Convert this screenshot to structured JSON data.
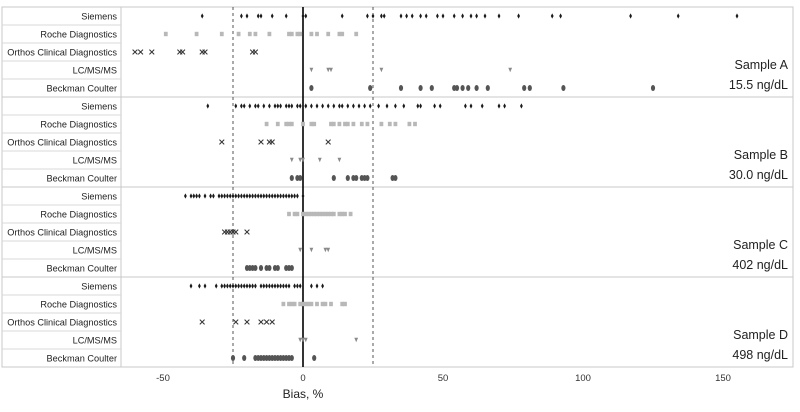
{
  "chart_data": {
    "type": "scatter",
    "xlabel": "Bias, %",
    "xlim": [
      -65,
      175
    ],
    "xticks": [
      -50,
      0,
      50,
      100,
      150
    ],
    "reference_lines": [
      -25,
      0,
      25
    ],
    "method_style": {
      "Siemens": {
        "marker": "diamond-small",
        "color": "#1a1a1a"
      },
      "Roche Diagnostics": {
        "marker": "square",
        "color": "#b8b8b8"
      },
      "Orthos Clinical Diagnostics": {
        "marker": "x",
        "color": "#333333"
      },
      "LC/MS/MS": {
        "marker": "triangle-down",
        "color": "#8a8a8a"
      },
      "Beckman Coulter": {
        "marker": "ellipse",
        "color": "#555555"
      }
    },
    "panels": [
      {
        "sample": "Sample A",
        "concentration": "15.5 ng/dL",
        "methods": [
          {
            "name": "Siemens",
            "values": [
              -36,
              -22,
              -20,
              -16,
              -15,
              -11,
              -6,
              0,
              1,
              14,
              23,
              25,
              28,
              29,
              35,
              37,
              39,
              42,
              44,
              48,
              50,
              54,
              57,
              60,
              62,
              65,
              70,
              77,
              89,
              92,
              117,
              134,
              155
            ]
          },
          {
            "name": "Roche Diagnostics",
            "values": [
              -49,
              -38,
              -29,
              -23,
              -19,
              -17,
              -12,
              -5,
              -4,
              -2,
              -1,
              3,
              5,
              9,
              13,
              14,
              19
            ]
          },
          {
            "name": "Orthos Clinical Diagnostics",
            "values": [
              -60,
              -58,
              -54,
              -44,
              -43,
              -36,
              -35,
              -18,
              -17
            ]
          },
          {
            "name": "LC/MS/MS",
            "values": [
              3,
              9,
              10,
              28,
              74
            ]
          },
          {
            "name": "Beckman Coulter",
            "values": [
              3,
              24,
              35,
              42,
              46,
              54,
              55,
              57,
              59,
              62,
              66,
              79,
              81,
              93,
              125
            ]
          }
        ]
      },
      {
        "sample": "Sample B",
        "concentration": "30.0 ng/dL",
        "methods": [
          {
            "name": "Siemens",
            "values": [
              -34,
              -24,
              -22,
              -21,
              -19,
              -17,
              -16,
              -14,
              -12,
              -10,
              -9,
              -8,
              -6,
              -5,
              -4,
              -2,
              -1,
              1,
              3,
              5,
              7,
              9,
              11,
              13,
              14,
              16,
              18,
              20,
              22,
              24,
              27,
              30,
              33,
              36,
              41,
              42,
              47,
              49,
              58,
              60,
              64,
              70,
              72,
              78
            ]
          },
          {
            "name": "Roche Diagnostics",
            "values": [
              -13,
              -9,
              -6,
              -5,
              -4,
              0,
              3,
              4,
              10,
              11,
              13,
              15,
              16,
              18,
              21,
              23,
              28,
              31,
              33,
              38,
              40
            ]
          },
          {
            "name": "Orthos Clinical Diagnostics",
            "values": [
              -29,
              -15,
              -12,
              -11,
              9
            ]
          },
          {
            "name": "LC/MS/MS",
            "values": [
              -4,
              -1,
              0,
              6,
              13
            ]
          },
          {
            "name": "Beckman Coulter",
            "values": [
              -4,
              -2,
              -1,
              11,
              16,
              18,
              19,
              21,
              22,
              23,
              32,
              33
            ]
          }
        ]
      },
      {
        "sample": "Sample C",
        "concentration": "402 ng/dL",
        "methods": [
          {
            "name": "Siemens",
            "values": [
              -42,
              -40,
              -39,
              -38,
              -37,
              -35,
              -33,
              -32,
              -30,
              -29,
              -28,
              -27,
              -26,
              -25,
              -24,
              -23,
              -22,
              -21,
              -20,
              -19,
              -18,
              -17,
              -16,
              -15,
              -14,
              -13,
              -12,
              -11,
              -10,
              -9,
              -8,
              -7,
              -6,
              -5,
              -4,
              -3,
              -2,
              0
            ]
          },
          {
            "name": "Roche Diagnostics",
            "values": [
              -5,
              -3,
              -2,
              0,
              1,
              2,
              3,
              4,
              5,
              6,
              7,
              8,
              9,
              10,
              11,
              13,
              14,
              15,
              17
            ]
          },
          {
            "name": "Orthos Clinical Diagnostics",
            "values": [
              -28,
              -27,
              -26,
              -25,
              -24,
              -20
            ]
          },
          {
            "name": "LC/MS/MS",
            "values": [
              -1,
              3,
              8,
              9
            ]
          },
          {
            "name": "Beckman Coulter",
            "values": [
              -20,
              -19,
              -18,
              -17,
              -15,
              -13,
              -12,
              -10,
              -9,
              -6,
              -5,
              -4
            ]
          }
        ]
      },
      {
        "sample": "Sample D",
        "concentration": "498 ng/dL",
        "methods": [
          {
            "name": "Siemens",
            "values": [
              -40,
              -37,
              -35,
              -31,
              -29,
              -28,
              -27,
              -26,
              -25,
              -24,
              -23,
              -22,
              -21,
              -20,
              -19,
              -18,
              -17,
              -15,
              -14,
              -13,
              -12,
              -11,
              -10,
              -9,
              -8,
              -7,
              -6,
              -5,
              -3,
              -2,
              -1,
              3,
              5,
              7
            ]
          },
          {
            "name": "Roche Diagnostics",
            "values": [
              -7,
              -5,
              -4,
              -3,
              -1,
              0,
              1,
              2,
              3,
              5,
              7,
              8,
              10,
              14,
              15
            ]
          },
          {
            "name": "Orthos Clinical Diagnostics",
            "values": [
              -36,
              -24,
              -20,
              -15,
              -13,
              -11
            ]
          },
          {
            "name": "LC/MS/MS",
            "values": [
              -1,
              0,
              1,
              19
            ]
          },
          {
            "name": "Beckman Coulter",
            "values": [
              -25,
              -21,
              -17,
              -16,
              -15,
              -14,
              -13,
              -12,
              -11,
              -10,
              -9,
              -8,
              -7,
              -6,
              -5,
              -4,
              4
            ]
          }
        ]
      }
    ]
  }
}
